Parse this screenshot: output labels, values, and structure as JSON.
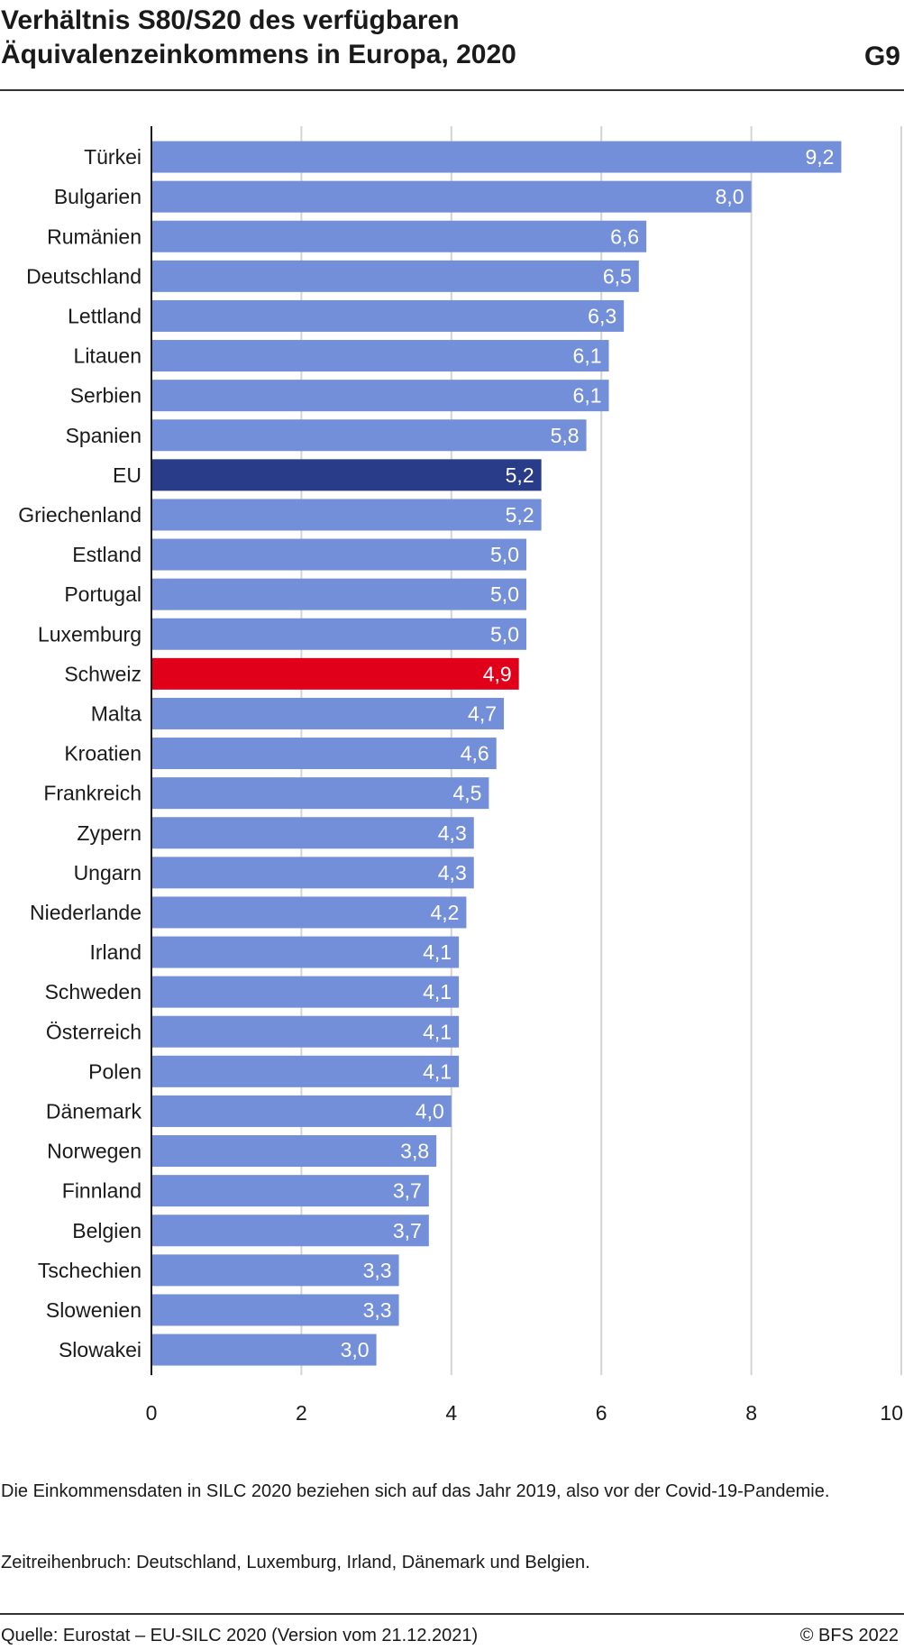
{
  "header": {
    "title_line1": "Verhältnis S80/S20 des verfügbaren",
    "title_line2": "Äquivalenzeinkommens in Europa, 2020",
    "figure_number": "G9"
  },
  "chart_data": {
    "type": "bar",
    "orientation": "horizontal",
    "categories": [
      "Türkei",
      "Bulgarien",
      "Rumänien",
      "Deutschland",
      "Lettland",
      "Litauen",
      "Serbien",
      "Spanien",
      "EU",
      "Griechenland",
      "Estland",
      "Portugal",
      "Luxemburg",
      "Schweiz",
      "Malta",
      "Kroatien",
      "Frankreich",
      "Zypern",
      "Ungarn",
      "Niederlande",
      "Irland",
      "Schweden",
      "Österreich",
      "Polen",
      "Dänemark",
      "Norwegen",
      "Finnland",
      "Belgien",
      "Tschechien",
      "Slowenien",
      "Slowakei"
    ],
    "values": [
      9.2,
      8.0,
      6.6,
      6.5,
      6.3,
      6.1,
      6.1,
      5.8,
      5.2,
      5.2,
      5.0,
      5.0,
      5.0,
      4.9,
      4.7,
      4.6,
      4.5,
      4.3,
      4.3,
      4.2,
      4.1,
      4.1,
      4.1,
      4.1,
      4.0,
      3.8,
      3.7,
      3.7,
      3.3,
      3.3,
      3.0
    ],
    "value_labels": [
      "9,2",
      "8,0",
      "6,6",
      "6,5",
      "6,3",
      "6,1",
      "6,1",
      "5,8",
      "5,2",
      "5,2",
      "5,0",
      "5,0",
      "5,0",
      "4,9",
      "4,7",
      "4,6",
      "4,5",
      "4,3",
      "4,3",
      "4,2",
      "4,1",
      "4,1",
      "4,1",
      "4,1",
      "4,0",
      "3,8",
      "3,7",
      "3,7",
      "3,3",
      "3,3",
      "3,0"
    ],
    "xlim": [
      0,
      10
    ],
    "xticks": [
      0,
      2,
      4,
      6,
      8,
      10
    ],
    "xtick_labels": [
      "0",
      "2",
      "4",
      "6",
      "8",
      "10"
    ],
    "grid": "vertical",
    "title": "Verhältnis S80/S20 des verfügbaren Äquivalenzeinkommens in Europa, 2020",
    "colors": {
      "default": "#748fd9",
      "EU": "#283c8a",
      "Schweiz": "#e1001a"
    }
  },
  "notes": {
    "note1": "Die Einkommensdaten in SILC 2020 beziehen sich auf das Jahr 2019, also vor der Covid-19-Pandemie.",
    "note2": "Zeitreihenbruch: Deutschland, Luxemburg, Irland, Dänemark und Belgien."
  },
  "footer": {
    "source": "Quelle: Eurostat – EU-SILC 2020 (Version vom 21.12.2021)",
    "copyright": "© BFS 2022"
  }
}
